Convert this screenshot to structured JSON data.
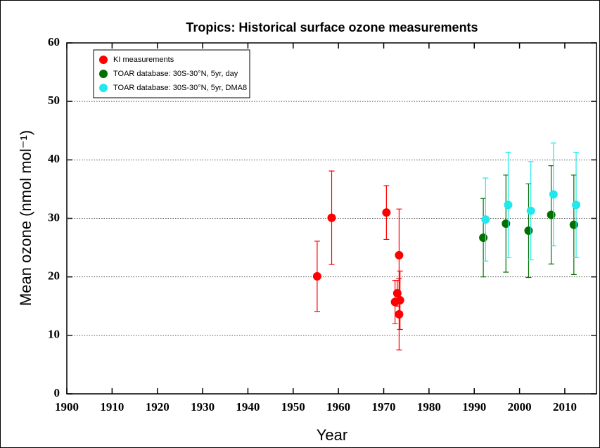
{
  "chart_data": {
    "type": "scatter",
    "title": "Tropics: Historical surface ozone measurements",
    "xlabel": "Year",
    "ylabel": "Mean ozone (nmol mol⁻¹)",
    "xlim": [
      1900,
      2017
    ],
    "ylim": [
      0,
      60
    ],
    "xticks": [
      1900,
      1910,
      1920,
      1930,
      1940,
      1950,
      1960,
      1970,
      1980,
      1990,
      2000,
      2010
    ],
    "yticks": [
      0,
      10,
      20,
      30,
      40,
      50,
      60
    ],
    "grid": true,
    "legend": "upper left",
    "series": [
      {
        "name": "KI measurements",
        "color": "#ff0000",
        "x": [
          1955.3,
          1958.5,
          1970.6,
          1973.4,
          1972.5,
          1973.0,
          1973.6,
          1973.4
        ],
        "values": [
          20.1,
          30.1,
          31.0,
          23.7,
          15.7,
          17.2,
          16.0,
          13.6
        ],
        "errors": [
          6.0,
          8.0,
          4.6,
          7.9,
          3.7,
          2.2,
          5.0,
          6.1
        ]
      },
      {
        "name": "TOAR database: 30S-30°N, 5yr, day",
        "color": "#007000",
        "x": [
          1992,
          1997,
          2002,
          2007,
          2012
        ],
        "values": [
          26.7,
          29.1,
          27.9,
          30.6,
          28.9
        ],
        "errors": [
          6.7,
          8.3,
          8.0,
          8.4,
          8.5
        ]
      },
      {
        "name": "TOAR database: 30S-30°N, 5yr, DMA8",
        "color": "#22e8ee",
        "x": [
          1992.5,
          1997.5,
          2002.5,
          2007.5,
          2012.5
        ],
        "values": [
          29.8,
          32.3,
          31.3,
          34.1,
          32.3
        ],
        "errors": [
          7.1,
          9.0,
          8.4,
          8.8,
          9.0
        ]
      }
    ]
  }
}
